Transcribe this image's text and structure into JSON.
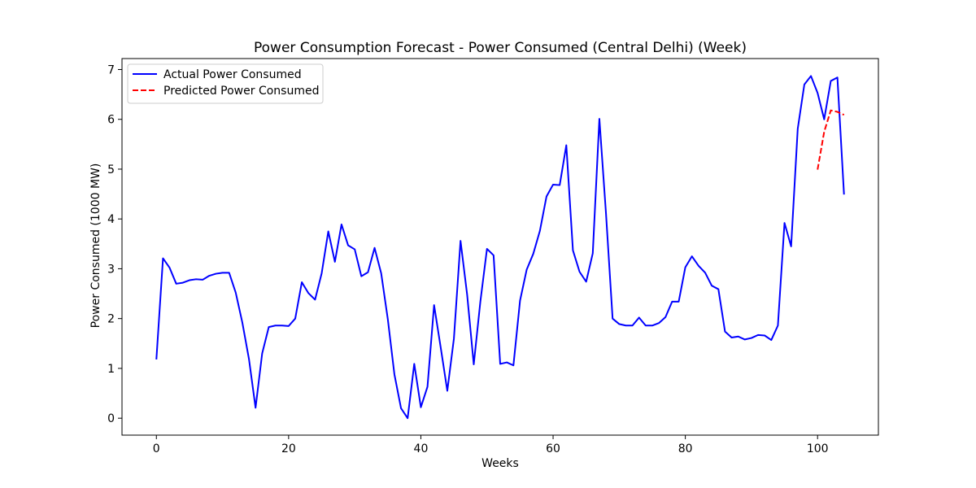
{
  "chart_data": {
    "type": "line",
    "title": "Power Consumption Forecast - Power Consumed (Central Delhi) (Week)",
    "xlabel": "Weeks",
    "ylabel": "Power Consumed (1000 MW)",
    "xlim": [
      -5.2,
      109.2
    ],
    "ylim": [
      -0.34,
      7.22
    ],
    "xticks": [
      0,
      20,
      40,
      60,
      80,
      100
    ],
    "yticks": [
      0,
      1,
      2,
      3,
      4,
      5,
      6,
      7
    ],
    "legend_position": "upper-left",
    "grid": false,
    "series": [
      {
        "name": "Actual Power Consumed",
        "color": "#0000ff",
        "style": "solid",
        "x": [
          0,
          1,
          2,
          3,
          4,
          5,
          6,
          7,
          8,
          9,
          10,
          11,
          12,
          13,
          14,
          15,
          16,
          17,
          18,
          19,
          20,
          21,
          22,
          23,
          24,
          25,
          26,
          27,
          28,
          29,
          30,
          31,
          32,
          33,
          34,
          35,
          36,
          37,
          38,
          39,
          40,
          41,
          42,
          43,
          44,
          45,
          46,
          47,
          48,
          49,
          50,
          51,
          52,
          53,
          54,
          55,
          56,
          57,
          58,
          59,
          60,
          61,
          62,
          63,
          64,
          65,
          66,
          67,
          68,
          69,
          70,
          71,
          72,
          73,
          74,
          75,
          76,
          77,
          78,
          79,
          80,
          81,
          82,
          83,
          84,
          85,
          86,
          87,
          88,
          89,
          90,
          91,
          92,
          93,
          94,
          95,
          96,
          97,
          98,
          99,
          100,
          101,
          102,
          103,
          104
        ],
        "y": [
          1.18,
          3.21,
          3.02,
          2.7,
          2.72,
          2.77,
          2.79,
          2.78,
          2.86,
          2.9,
          2.92,
          2.92,
          2.52,
          1.92,
          1.19,
          0.21,
          1.3,
          1.83,
          1.86,
          1.86,
          1.85,
          2.0,
          2.73,
          2.51,
          2.38,
          2.91,
          3.75,
          3.14,
          3.89,
          3.47,
          3.39,
          2.85,
          2.93,
          3.42,
          2.91,
          1.99,
          0.88,
          0.2,
          0.0,
          1.09,
          0.22,
          0.63,
          2.27,
          1.42,
          0.55,
          1.6,
          3.56,
          2.48,
          1.08,
          2.34,
          3.4,
          3.27,
          1.09,
          1.12,
          1.06,
          2.36,
          2.98,
          3.3,
          3.76,
          4.45,
          4.69,
          4.68,
          5.48,
          3.37,
          2.94,
          2.74,
          3.31,
          6.01,
          4.11,
          2.0,
          1.89,
          1.86,
          1.86,
          2.02,
          1.86,
          1.86,
          1.91,
          2.03,
          2.34,
          2.34,
          3.03,
          3.25,
          3.06,
          2.92,
          2.66,
          2.59,
          1.74,
          1.62,
          1.64,
          1.58,
          1.61,
          1.67,
          1.66,
          1.57,
          1.86,
          3.92,
          3.45,
          5.81,
          6.7,
          6.87,
          6.53,
          6.0,
          6.77,
          6.84,
          4.49
        ]
      },
      {
        "name": "Predicted Power Consumed",
        "color": "#ff0000",
        "style": "dashed",
        "x": [
          100,
          101,
          102,
          103,
          104
        ],
        "y": [
          4.99,
          5.75,
          6.18,
          6.15,
          6.09
        ]
      }
    ]
  }
}
